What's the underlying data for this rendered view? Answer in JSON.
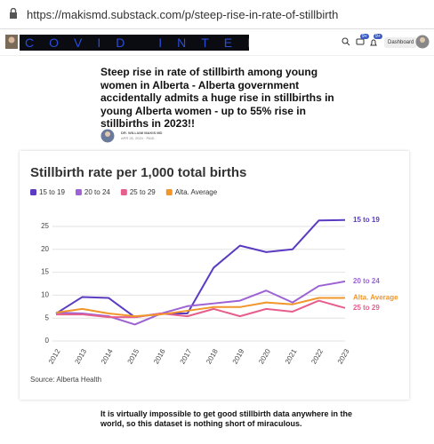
{
  "browser": {
    "url": "https://makismd.substack.com/p/steep-rise-in-rate-of-stillbirth"
  },
  "header": {
    "logo": "COVID INTEL",
    "dashboard": "Dashboard",
    "notifications_a": "9+",
    "notifications_b": "9+"
  },
  "article": {
    "title": "Steep rise in rate of stillbirth among young women in Alberta - Alberta government accidentally admits a huge rise in stillbirths in young Alberta women - up to 55% rise in stillbirths in 2023!!",
    "author": "DR. WILLIAM MAKIS MD",
    "date": "APR 26, 2024 · PAID",
    "body": "It is virtually impossible to get good stillbirth data anywhere in the world, so this dataset is nothing short of miraculous."
  },
  "chart_data": {
    "type": "line",
    "title": "Stillbirth rate per 1,000 total births",
    "source": "Source: Alberta Health",
    "categories": [
      "2012",
      "2013",
      "2014",
      "2015",
      "2016",
      "2017",
      "2018",
      "2019",
      "2020",
      "2021",
      "2022",
      "2023"
    ],
    "series": [
      {
        "name": "15 to 19",
        "color": "#5a3bc2",
        "values": [
          6,
          9.6,
          9.4,
          5.2,
          6,
          6,
          16,
          20.8,
          19.4,
          20,
          26.3,
          26.4
        ]
      },
      {
        "name": "20 to 24",
        "color": "#9d62d4",
        "values": [
          6.2,
          6,
          5.4,
          3.6,
          6,
          7.6,
          8.2,
          8.8,
          11,
          8.4,
          12,
          13
        ]
      },
      {
        "name": "25 to 29",
        "color": "#e65f8c",
        "values": [
          5.8,
          5.8,
          5.2,
          5.2,
          6,
          5.4,
          7,
          5.4,
          7,
          6.4,
          8.8,
          7.2
        ]
      },
      {
        "name": "Alta. Average",
        "color": "#f0962a",
        "values": [
          6.2,
          7,
          6,
          5.4,
          5.8,
          6.6,
          7.4,
          7.4,
          8.4,
          8,
          9.4,
          9.4
        ]
      }
    ],
    "ylim": [
      0,
      28
    ],
    "yticks": [
      0,
      5,
      10,
      15,
      20,
      25
    ],
    "grid": true
  }
}
